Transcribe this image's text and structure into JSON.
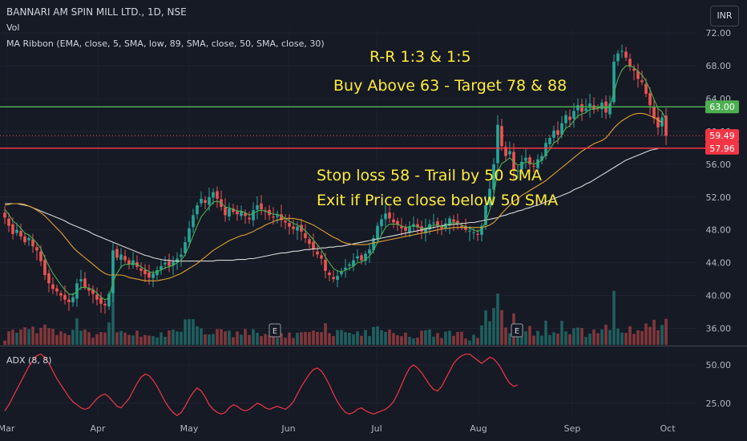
{
  "header": {
    "title": "BANNARI AM SPIN MILL LTD., 1D, NSE",
    "vol": "Vol",
    "ma_ribbon": "MA Ribbon (EMA, close, 5, SMA, low, 89, SMA, close, 50, SMA, close, 30)",
    "currency": "INR"
  },
  "annotations": {
    "rr": "R-R 1:3 & 1:5",
    "buy": "Buy Above 63 - Target 78 & 88",
    "stop": "Stop loss 58 - Trail by 50 SMA",
    "exit": "Exit if Price close below 50 SMA"
  },
  "adx_label": "ADX (8, 8)",
  "colors": {
    "background": "#161a25",
    "up": "#26a69a",
    "down": "#ef5350",
    "ema5": "#4caf50",
    "sma30": "#e0a030",
    "sma89": "#d8d8d8",
    "buy_line": "#4caf50",
    "stop_line": "#f23645",
    "annotation": "#ffeb3b",
    "adx": "#f23645"
  },
  "chart_data": {
    "type": "candlestick",
    "y_ticks": [
      "72.00",
      "68.00",
      "64.00",
      "60.00",
      "56.00",
      "52.00",
      "48.00",
      "44.00",
      "40.00",
      "36.00"
    ],
    "ylim": [
      34,
      72.5
    ],
    "x_ticks": [
      "Mar",
      "Apr",
      "May",
      "Jun",
      "Jul",
      "Aug",
      "Sep",
      "Oct"
    ],
    "levels": [
      {
        "label": "63.00",
        "value": 63.0,
        "color": "#4caf50"
      },
      {
        "label": "57.96",
        "value": 57.96,
        "color": "#f23645"
      }
    ],
    "last_price": {
      "label": "59.49",
      "value": 59.49
    },
    "earnings_markers": [
      "E",
      "E"
    ],
    "closes": [
      49.5,
      48.5,
      47.5,
      48,
      47.2,
      46.5,
      47,
      46,
      45.5,
      44.2,
      42.5,
      41.5,
      40.8,
      40.5,
      40,
      39.5,
      39.2,
      39.8,
      41.5,
      42,
      41,
      40.6,
      40.2,
      39.5,
      39,
      38.8,
      40.2,
      45.5,
      44.6,
      45,
      44.3,
      43.8,
      44.3,
      43.5,
      43,
      42.6,
      42.2,
      42.7,
      43.1,
      43.6,
      44,
      43.6,
      44.1,
      44.5,
      45,
      46.5,
      48.2,
      49.8,
      51,
      51.8,
      51.3,
      52,
      52.6,
      51.8,
      50.8,
      49.8,
      50.6,
      50.2,
      49.9,
      50.3,
      49.7,
      49.3,
      50.4,
      51,
      50.5,
      50.2,
      49.8,
      49.5,
      49.8,
      49.2,
      48.9,
      48.4,
      48.1,
      48.4,
      47.8,
      47,
      46.3,
      45.6,
      45,
      44.5,
      43,
      42.5,
      42,
      42.4,
      42.9,
      43.4,
      43.8,
      44.3,
      44.8,
      44.3,
      45.1,
      45.6,
      47,
      48.5,
      49.3,
      50,
      49.4,
      48.9,
      48.6,
      48.2,
      47.9,
      48.4,
      48.7,
      48.3,
      47.8,
      48.2,
      48.7,
      48.9,
      48.5,
      48.2,
      48.8,
      49.4,
      49,
      48.7,
      48.3,
      48,
      47.9,
      47.7,
      47.4,
      48.5,
      51,
      53,
      56,
      60.8,
      58.2,
      57,
      57.6,
      55.3,
      55.2,
      56.3,
      56.8,
      56,
      55.7,
      56.6,
      57,
      58.6,
      59.2,
      60.1,
      59.6,
      61,
      62,
      61.4,
      62.5,
      63.2,
      62.4,
      62.8,
      63.4,
      62.7,
      62.9,
      63.5,
      62.3,
      63.4,
      68.5,
      69.5,
      69.8,
      69,
      67.9,
      67.4,
      66.4,
      66,
      64.6,
      63.2,
      61.6,
      60.5,
      61.7,
      59.49
    ],
    "ema5": [
      50.5,
      49.9,
      49.1,
      48.7,
      48.2,
      47.6,
      47.4,
      46.9,
      46.4,
      45.7,
      44.6,
      43.6,
      42.7,
      42,
      41.3,
      40.7,
      40.2,
      40.1,
      40.5,
      41,
      41,
      40.9,
      40.7,
      40.3,
      39.8,
      39.5,
      39.7,
      41.7,
      42.7,
      43.5,
      43.8,
      43.8,
      43.9,
      43.8,
      43.5,
      43.2,
      42.9,
      42.8,
      42.9,
      43.1,
      43.4,
      43.5,
      43.7,
      44,
      44.3,
      45,
      46.1,
      47.3,
      48.5,
      49.6,
      50.2,
      50.8,
      51.4,
      51.5,
      51.3,
      50.8,
      50.7,
      50.5,
      50.3,
      50.3,
      50.1,
      49.8,
      50,
      50.3,
      50.4,
      50.3,
      50.1,
      49.9,
      49.9,
      49.7,
      49.4,
      49.1,
      48.8,
      48.6,
      48.3,
      47.9,
      47.4,
      46.8,
      46.2,
      45.6,
      44.7,
      44,
      43.3,
      43,
      42.9,
      43.1,
      43.3,
      43.6,
      44,
      44.1,
      44.4,
      44.8,
      45.5,
      46.5,
      47.4,
      48.3,
      48.7,
      48.7,
      48.7,
      48.5,
      48.3,
      48.4,
      48.5,
      48.4,
      48.2,
      48.2,
      48.4,
      48.6,
      48.6,
      48.4,
      48.5,
      48.8,
      48.9,
      48.8,
      48.6,
      48.4,
      48.2,
      48,
      47.8,
      48.1,
      49,
      50.4,
      52.3,
      55.1,
      56.1,
      56.4,
      56.8,
      56.3,
      55.9,
      56,
      56.3,
      56.2,
      56,
      56.2,
      56.5,
      57.2,
      57.8,
      58.6,
      58.9,
      59.6,
      60.4,
      60.7,
      61.3,
      61.9,
      62.1,
      62.3,
      62.7,
      62.7,
      62.8,
      63,
      62.8,
      63,
      64.8,
      66.4,
      67.5,
      68,
      68,
      67.8,
      67.3,
      66.9,
      66.1,
      65.1,
      63.9,
      62.8,
      62.4,
      61.4
    ],
    "sma30": [
      51,
      51.1,
      51.2,
      51.2,
      51.2,
      51.1,
      50.9,
      50.7,
      50.4,
      50.1,
      49.7,
      49.2,
      48.7,
      48.2,
      47.7,
      47.1,
      46.5,
      45.9,
      45.4,
      45,
      44.6,
      44.2,
      43.8,
      43.4,
      43,
      42.7,
      42.5,
      42.5,
      42.5,
      42.5,
      42.4,
      42.2,
      42.1,
      42,
      41.9,
      41.8,
      41.8,
      41.8,
      41.8,
      41.9,
      42,
      42.1,
      42.3,
      42.5,
      42.7,
      43,
      43.3,
      43.6,
      43.9,
      44.3,
      44.7,
      45.1,
      45.5,
      45.8,
      46.1,
      46.4,
      46.7,
      46.9,
      47.1,
      47.3,
      47.4,
      47.6,
      47.8,
      48.1,
      48.3,
      48.6,
      48.8,
      49,
      49.2,
      49.3,
      49.4,
      49.4,
      49.4,
      49.3,
      49.2,
      49,
      48.8,
      48.6,
      48.3,
      48,
      47.7,
      47.4,
      47.1,
      46.9,
      46.6,
      46.4,
      46.3,
      46.2,
      46.2,
      46.2,
      46.2,
      46.3,
      46.4,
      46.5,
      46.6,
      46.7,
      46.8,
      46.9,
      47,
      47.1,
      47.2,
      47.3,
      47.4,
      47.5,
      47.6,
      47.7,
      47.8,
      47.9,
      48,
      48.1,
      48.2,
      48.2,
      48.3,
      48.3,
      48.3,
      48.3,
      48.3,
      48.3,
      48.3,
      48.3,
      48.4,
      48.6,
      48.9,
      49.4,
      50,
      50.5,
      51,
      51.5,
      51.8,
      52.2,
      52.5,
      52.8,
      53.1,
      53.4,
      53.7,
      54,
      54.4,
      54.8,
      55.2,
      55.6,
      56,
      56.4,
      56.8,
      57.2,
      57.6,
      57.9,
      58.2,
      58.5,
      58.7,
      58.9,
      59.2,
      59.8,
      60.4,
      60.9,
      61.3,
      61.6,
      61.9,
      62.1,
      62.2,
      62.2,
      62.1,
      61.9,
      61.7,
      61.4,
      61.1
    ],
    "sma89": [
      51.2,
      51.2,
      51.2,
      51.2,
      51.1,
      51,
      50.9,
      50.7,
      50.5,
      50.3,
      50.1,
      49.9,
      49.7,
      49.5,
      49.3,
      49.1,
      48.8,
      48.6,
      48.4,
      48.2,
      48,
      47.8,
      47.5,
      47.3,
      47.1,
      46.9,
      46.7,
      46.5,
      46.3,
      46.1,
      45.9,
      45.7,
      45.5,
      45.3,
      45.1,
      44.9,
      44.8,
      44.6,
      44.5,
      44.4,
      44.3,
      44.3,
      44.2,
      44.2,
      44.2,
      44.2,
      44.2,
      44.2,
      44.2,
      44.2,
      44.2,
      44.2,
      44.2,
      44.3,
      44.3,
      44.3,
      44.3,
      44.3,
      44.4,
      44.4,
      44.4,
      44.5,
      44.5,
      44.6,
      44.7,
      44.8,
      44.9,
      45,
      45.1,
      45.2,
      45.2,
      45.3,
      45.4,
      45.4,
      45.5,
      45.6,
      45.6,
      45.7,
      45.7,
      45.8,
      45.8,
      45.9,
      45.9,
      46,
      46,
      46.1,
      46.2,
      46.3,
      46.4,
      46.5,
      46.6,
      46.7,
      46.8,
      46.9,
      47,
      47.1,
      47.2,
      47.3,
      47.4,
      47.5,
      47.6,
      47.7,
      47.8,
      47.9,
      48,
      48.1,
      48.2,
      48.3,
      48.4,
      48.5,
      48.6,
      48.6,
      48.7,
      48.7,
      48.8,
      48.8,
      48.9,
      48.9,
      49,
      49.1,
      49.2,
      49.3,
      49.4,
      49.5,
      49.7,
      49.8,
      50,
      50.1,
      50.3,
      50.4,
      50.6,
      50.7,
      50.9,
      51,
      51.2,
      51.4,
      51.6,
      51.8,
      52,
      52.2,
      52.4,
      52.6,
      52.9,
      53.1,
      53.3,
      53.6,
      53.8,
      54.1,
      54.4,
      54.7,
      55,
      55.3,
      55.6,
      55.9,
      56.2,
      56.5,
      56.7,
      56.9,
      57.1,
      57.3,
      57.5,
      57.7,
      57.8,
      57.9
    ],
    "adx": {
      "name": "ADX (8, 8)",
      "y_ticks": [
        "50.00",
        "25.00"
      ],
      "ylim": [
        15,
        60
      ],
      "values": [
        20,
        24,
        29,
        34,
        39,
        44,
        49,
        53,
        56,
        57,
        55,
        51,
        46,
        41,
        37,
        33,
        29,
        26,
        24,
        22,
        21,
        22,
        25,
        28,
        30,
        31,
        29,
        26,
        23,
        22,
        25,
        28,
        33,
        38,
        42,
        44,
        43,
        40,
        36,
        31,
        26,
        22,
        19,
        17,
        19,
        23,
        28,
        32,
        35,
        33,
        29,
        24,
        21,
        19,
        18,
        19,
        22,
        24,
        23,
        21,
        20,
        21,
        23,
        25,
        24,
        22,
        21,
        22,
        23,
        22,
        21,
        23,
        26,
        31,
        36,
        40,
        44,
        47,
        48,
        46,
        42,
        37,
        31,
        26,
        22,
        19,
        18,
        19,
        21,
        22,
        20,
        19,
        18,
        19,
        20,
        21,
        23,
        26,
        31,
        37,
        43,
        48,
        50,
        48,
        45,
        41,
        37,
        34,
        33,
        36,
        41,
        46,
        51,
        54,
        56,
        57,
        57,
        55,
        53,
        51,
        53,
        55,
        54,
        51,
        47,
        42,
        38,
        36,
        37
      ]
    }
  }
}
